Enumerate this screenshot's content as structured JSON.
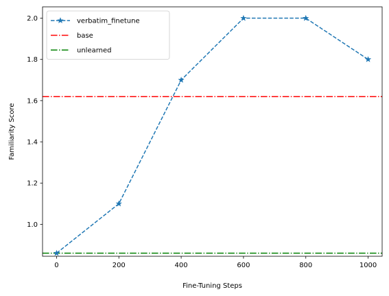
{
  "chart_data": {
    "type": "line",
    "title": "",
    "xlabel": "Fine-Tuning Steps",
    "ylabel": "Familiarity Score",
    "xlim": [
      -45,
      1045
    ],
    "ylim": [
      0.845,
      2.055
    ],
    "x_ticks": [
      0,
      200,
      400,
      600,
      800,
      1000
    ],
    "x_tick_labels": [
      "0",
      "200",
      "400",
      "600",
      "800",
      "1000"
    ],
    "y_ticks": [
      1.0,
      1.2,
      1.4,
      1.6,
      1.8,
      2.0
    ],
    "y_tick_labels": [
      "1.0",
      "1.2",
      "1.4",
      "1.6",
      "1.8",
      "2.0"
    ],
    "grid": false,
    "legend_position": "top-left",
    "series": [
      {
        "name": "verbatim_finetune",
        "x": [
          0,
          200,
          400,
          600,
          800,
          1000
        ],
        "values": [
          0.86,
          1.1,
          1.7,
          2.0,
          2.0,
          1.8
        ],
        "color": "#1f77b4",
        "line_style": "dashed",
        "marker": "star"
      }
    ],
    "reference_lines": [
      {
        "name": "base",
        "y": 1.62,
        "color": "#ff0000",
        "line_style": "dash-dot"
      },
      {
        "name": "unlearned",
        "y": 0.86,
        "color": "#008000",
        "line_style": "dash-dot"
      }
    ]
  }
}
